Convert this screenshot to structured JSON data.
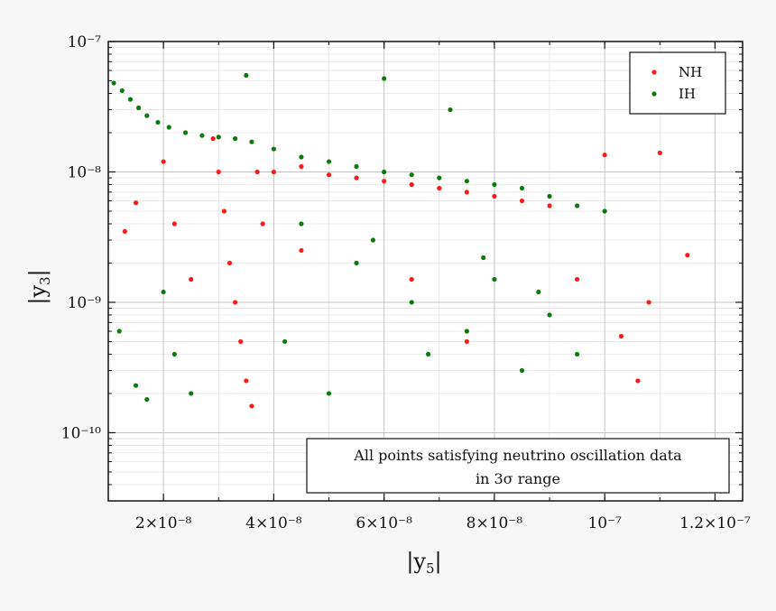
{
  "chart_data": {
    "type": "scatter",
    "xscale": "linear",
    "yscale": "log",
    "xlim": [
      1e-08,
      1.25e-07
    ],
    "ylim": [
      3e-11,
      1e-07
    ],
    "xlabel": "|y5|",
    "ylabel": "|y3|",
    "x_ticks": [
      2e-08,
      4e-08,
      6e-08,
      8e-08,
      1e-07,
      1.2e-07
    ],
    "x_tick_labels": [
      "2×10⁻⁸",
      "4×10⁻⁸",
      "6×10⁻⁸",
      "8×10⁻⁸",
      "10⁻⁷",
      "1.2×10⁻⁷"
    ],
    "y_ticks": [
      1e-10,
      1e-09,
      1e-08,
      1e-07
    ],
    "y_tick_labels": [
      "10⁻¹⁰",
      "10⁻⁹",
      "10⁻⁸",
      "10⁻⁷"
    ],
    "grid": true,
    "legend_position": "top-right",
    "annotation": [
      "All points satisfying neutrino oscillation data",
      "in 3σ range"
    ],
    "series": [
      {
        "name": "IH",
        "color": "#0a7a0a",
        "points": [
          [
            1.1e-08,
            4.8e-08
          ],
          [
            1.25e-08,
            4.2e-08
          ],
          [
            1.4e-08,
            3.6e-08
          ],
          [
            1.55e-08,
            3.1e-08
          ],
          [
            1.7e-08,
            2.7e-08
          ],
          [
            1.9e-08,
            2.4e-08
          ],
          [
            2.1e-08,
            2.2e-08
          ],
          [
            2.4e-08,
            2e-08
          ],
          [
            2.7e-08,
            1.9e-08
          ],
          [
            3e-08,
            1.85e-08
          ],
          [
            3.3e-08,
            1.8e-08
          ],
          [
            3.6e-08,
            1.7e-08
          ],
          [
            4e-08,
            1.5e-08
          ],
          [
            4.5e-08,
            1.3e-08
          ],
          [
            5e-08,
            1.2e-08
          ],
          [
            5.5e-08,
            1.1e-08
          ],
          [
            6e-08,
            1e-08
          ],
          [
            6.5e-08,
            9.5e-09
          ],
          [
            7e-08,
            9e-09
          ],
          [
            7.5e-08,
            8.5e-09
          ],
          [
            8e-08,
            8e-09
          ],
          [
            8.5e-08,
            7.5e-09
          ],
          [
            9e-08,
            6.5e-09
          ],
          [
            9.5e-08,
            5.5e-09
          ],
          [
            1e-07,
            5e-09
          ],
          [
            6e-08,
            5.2e-08
          ],
          [
            7.2e-08,
            3e-08
          ],
          [
            3.5e-08,
            5.5e-08
          ],
          [
            4.5e-08,
            4e-09
          ],
          [
            5.5e-08,
            2e-09
          ],
          [
            6.5e-08,
            1e-09
          ],
          [
            7.5e-08,
            6e-10
          ],
          [
            8.5e-08,
            3e-10
          ],
          [
            5e-08,
            2e-10
          ],
          [
            4.2e-08,
            5e-10
          ],
          [
            6.8e-08,
            4e-10
          ],
          [
            8e-08,
            1.5e-09
          ],
          [
            9e-08,
            8e-10
          ],
          [
            9.5e-08,
            4e-10
          ],
          [
            1.2e-08,
            6e-10
          ],
          [
            1.5e-08,
            2.3e-10
          ],
          [
            1.7e-08,
            1.8e-10
          ],
          [
            2e-08,
            1.2e-09
          ],
          [
            2.2e-08,
            4e-10
          ],
          [
            2.5e-08,
            2e-10
          ],
          [
            5.8e-08,
            3e-09
          ],
          [
            7.8e-08,
            2.2e-09
          ],
          [
            8.8e-08,
            1.2e-09
          ]
        ]
      },
      {
        "name": "NH",
        "color": "#ff1a1a",
        "points": [
          [
            2.9e-08,
            1.8e-08
          ],
          [
            3e-08,
            1e-08
          ],
          [
            3.1e-08,
            5e-09
          ],
          [
            3.2e-08,
            2e-09
          ],
          [
            3.3e-08,
            1e-09
          ],
          [
            3.4e-08,
            5e-10
          ],
          [
            3.5e-08,
            2.5e-10
          ],
          [
            3.6e-08,
            1.6e-10
          ],
          [
            3.7e-08,
            1e-08
          ],
          [
            3.8e-08,
            4e-09
          ],
          [
            4e-08,
            1e-08
          ],
          [
            4.5e-08,
            1.1e-08
          ],
          [
            5e-08,
            9.5e-09
          ],
          [
            5.5e-08,
            9e-09
          ],
          [
            6e-08,
            8.5e-09
          ],
          [
            6.5e-08,
            8e-09
          ],
          [
            7e-08,
            7.5e-09
          ],
          [
            7.5e-08,
            7e-09
          ],
          [
            8e-08,
            6.5e-09
          ],
          [
            8.5e-08,
            6e-09
          ],
          [
            9e-08,
            5.5e-09
          ],
          [
            1e-07,
            1.35e-08
          ],
          [
            1.1e-07,
            1.4e-08
          ],
          [
            1.15e-07,
            2.3e-09
          ],
          [
            1.06e-07,
            2.5e-10
          ],
          [
            1.03e-07,
            5.5e-10
          ],
          [
            1.08e-07,
            1e-09
          ],
          [
            1.3e-08,
            3.5e-09
          ],
          [
            1.5e-08,
            5.8e-09
          ],
          [
            2e-08,
            1.2e-08
          ],
          [
            2.2e-08,
            4e-09
          ],
          [
            2.5e-08,
            1.5e-09
          ],
          [
            4.5e-08,
            2.5e-09
          ],
          [
            6.5e-08,
            1.5e-09
          ],
          [
            7.5e-08,
            5e-10
          ],
          [
            9.5e-08,
            1.5e-09
          ]
        ]
      }
    ]
  }
}
